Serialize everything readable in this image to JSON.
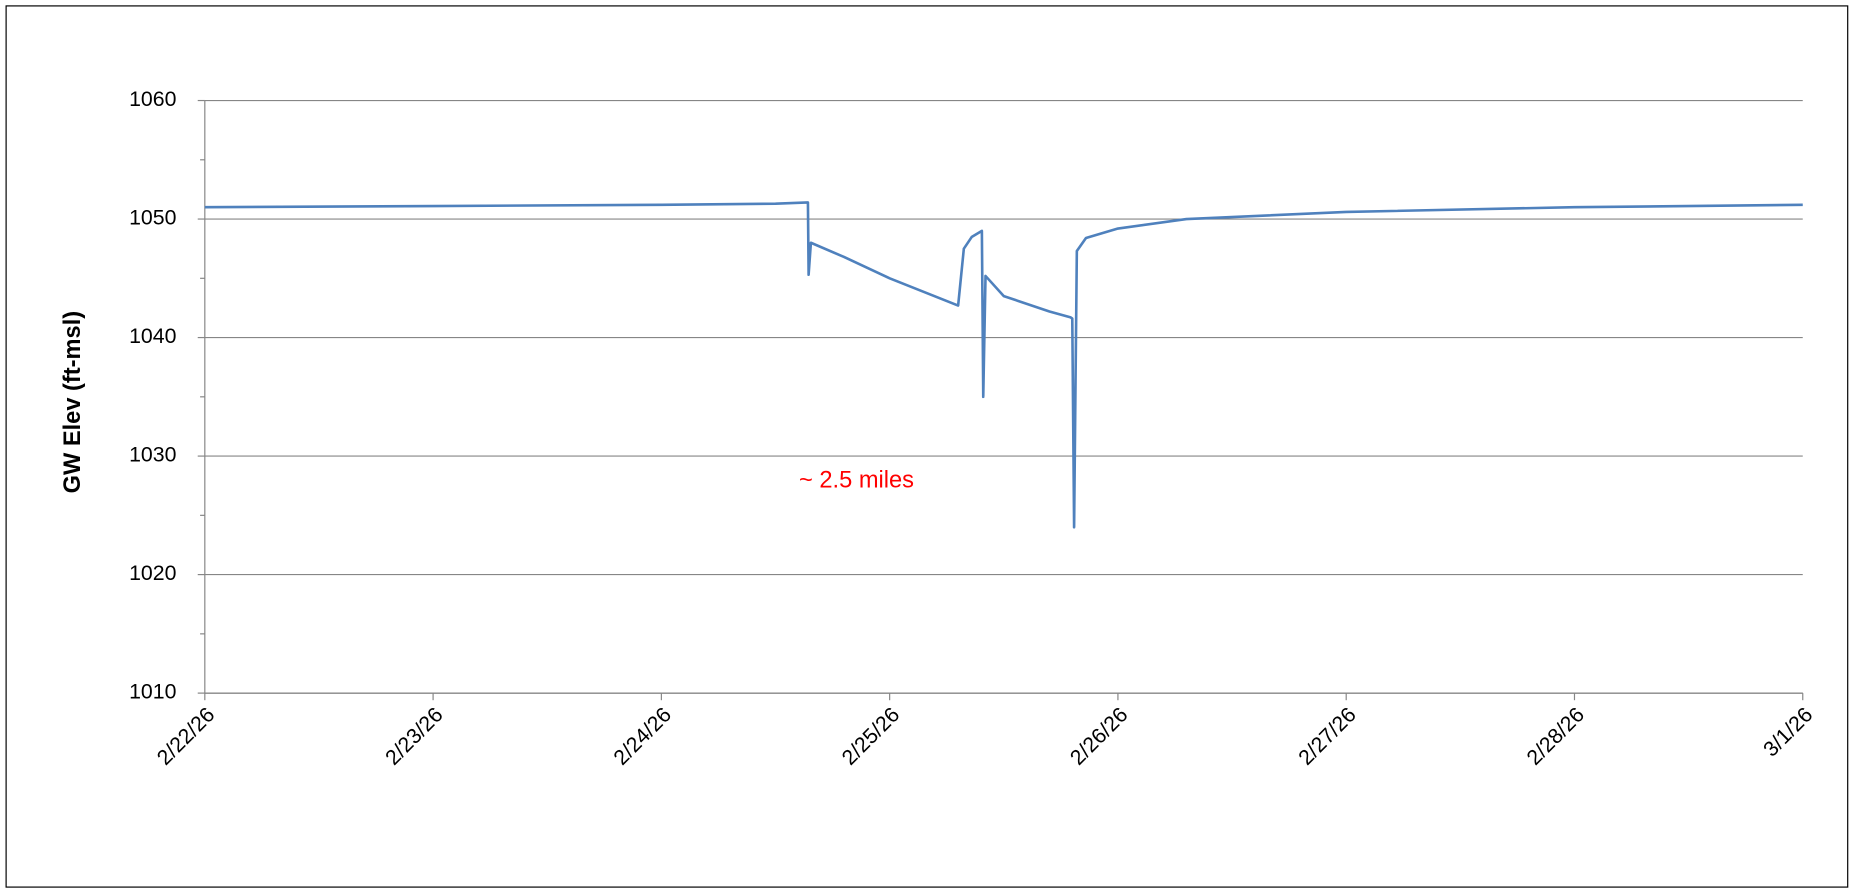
{
  "chart_data": {
    "type": "line",
    "y_label": "GW Elev (ft-msl)",
    "annotation": "~ 2.5 miles",
    "annotation_color": "#ff0000",
    "x": [
      46075,
      46076,
      46077,
      46077.5,
      46077.642,
      46077.645,
      46077.655,
      46077.8,
      46078,
      46078.3,
      46078.325,
      46078.36,
      46078.404,
      46078.41,
      46078.42,
      46078.5,
      46078.7,
      46078.793,
      46078.8,
      46078.808,
      46078.82,
      46078.86,
      46079,
      46079.3,
      46080,
      46081,
      46082
    ],
    "series": [
      {
        "name": "GW Elev",
        "color": "#4f81bd",
        "values": [
          1051.0,
          1051.1,
          1051.2,
          1051.3,
          1051.4,
          1045.3,
          1048.0,
          1046.8,
          1045.0,
          1042.7,
          1047.5,
          1048.5,
          1049.0,
          1035.0,
          1045.2,
          1043.5,
          1042.2,
          1041.7,
          1041.6,
          1024.0,
          1047.3,
          1048.4,
          1049.2,
          1050.0,
          1050.6,
          1051.0,
          1051.2
        ]
      }
    ],
    "xlim": [
      46075,
      46082
    ],
    "xticks": [
      {
        "value": 46075,
        "label": "2/22/26"
      },
      {
        "value": 46076,
        "label": "2/23/26"
      },
      {
        "value": 46077,
        "label": "2/24/26"
      },
      {
        "value": 46078,
        "label": "2/25/26"
      },
      {
        "value": 46079,
        "label": "2/26/26"
      },
      {
        "value": 46080,
        "label": "2/27/26"
      },
      {
        "value": 46081,
        "label": "2/28/26"
      },
      {
        "value": 46082,
        "label": "3/1/26"
      }
    ],
    "ylim": [
      1010,
      1060
    ],
    "yticks": [
      1010,
      1020,
      1030,
      1040,
      1050,
      1060
    ],
    "yminorticks": [
      1015,
      1025,
      1035,
      1045,
      1055
    ],
    "grid": true
  }
}
